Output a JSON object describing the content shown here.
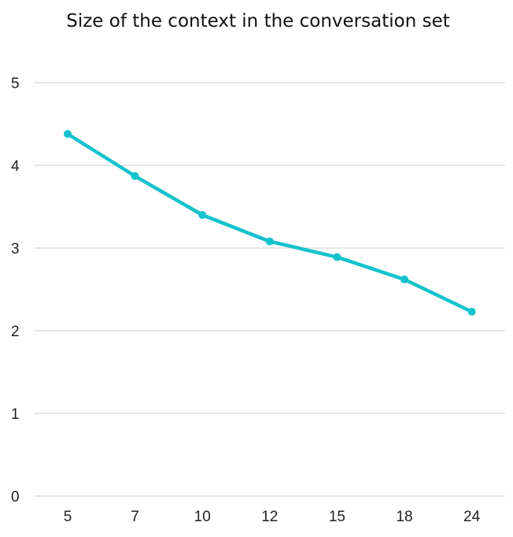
{
  "chart_data": {
    "type": "line",
    "title": "Size of the context in the conversation set",
    "categories": [
      "5",
      "7",
      "10",
      "12",
      "15",
      "18",
      "24"
    ],
    "series": [
      {
        "values": [
          4.38,
          3.87,
          3.4,
          3.08,
          2.89,
          2.62,
          2.23
        ],
        "color": "#14c2cc"
      }
    ],
    "y_ticks": [
      "0",
      "1",
      "2",
      "3",
      "4",
      "5"
    ],
    "ylim": [
      0,
      5
    ],
    "xlabel": "",
    "ylabel": "",
    "grid": true,
    "grid_color": "#cccccc"
  }
}
